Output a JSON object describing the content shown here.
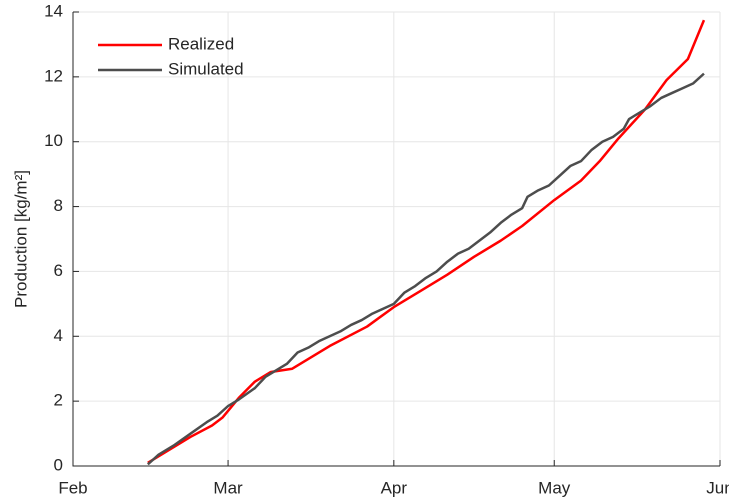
{
  "chart_data": {
    "type": "line",
    "ylabel": "Production [kg/m²]",
    "xlim": [
      0,
      121
    ],
    "xticks": [
      {
        "value": 0,
        "label": "Feb"
      },
      {
        "value": 29,
        "label": "Mar"
      },
      {
        "value": 60,
        "label": "Apr"
      },
      {
        "value": 90,
        "label": "May"
      },
      {
        "value": 121,
        "label": "Jun"
      }
    ],
    "ylim": [
      0,
      14
    ],
    "yticks": [
      0,
      2,
      4,
      6,
      8,
      10,
      12,
      14
    ],
    "grid": true,
    "legend": "upper-left",
    "series": [
      {
        "name": "Realized",
        "color": "#ff0000",
        "x": [
          14,
          18,
          22,
          26,
          28,
          31,
          34,
          37,
          41,
          48,
          55,
          60,
          65,
          70,
          75,
          80,
          84,
          90,
          95,
          98.5,
          102,
          107,
          111,
          115,
          118
        ],
        "values": [
          0.1,
          0.5,
          0.9,
          1.25,
          1.5,
          2.1,
          2.6,
          2.9,
          3.0,
          3.7,
          4.3,
          4.9,
          5.4,
          5.9,
          6.45,
          6.95,
          7.4,
          8.2,
          8.8,
          9.4,
          10.1,
          11.0,
          11.9,
          12.55,
          13.75
        ]
      },
      {
        "name": "Simulated",
        "color": "#4d4d4d",
        "x": [
          14,
          16,
          19,
          22,
          25,
          27,
          29,
          31,
          34,
          36,
          38,
          40,
          42,
          44,
          46,
          48,
          50,
          52,
          54,
          56,
          58,
          60,
          62,
          64,
          66,
          68,
          70,
          72,
          74,
          76,
          78,
          80,
          82,
          84,
          85,
          87,
          89,
          91,
          93,
          95,
          97,
          99,
          101,
          103,
          104,
          106,
          108,
          110,
          112,
          114,
          116,
          118
        ],
        "values": [
          0.05,
          0.35,
          0.65,
          1.0,
          1.35,
          1.55,
          1.85,
          2.05,
          2.4,
          2.75,
          2.95,
          3.15,
          3.5,
          3.65,
          3.85,
          4.0,
          4.15,
          4.35,
          4.5,
          4.7,
          4.85,
          5.0,
          5.35,
          5.55,
          5.8,
          6.0,
          6.3,
          6.55,
          6.7,
          6.95,
          7.2,
          7.5,
          7.75,
          7.95,
          8.3,
          8.5,
          8.65,
          8.95,
          9.25,
          9.4,
          9.75,
          10.0,
          10.15,
          10.4,
          10.7,
          10.9,
          11.1,
          11.35,
          11.5,
          11.65,
          11.8,
          12.1
        ]
      }
    ]
  }
}
